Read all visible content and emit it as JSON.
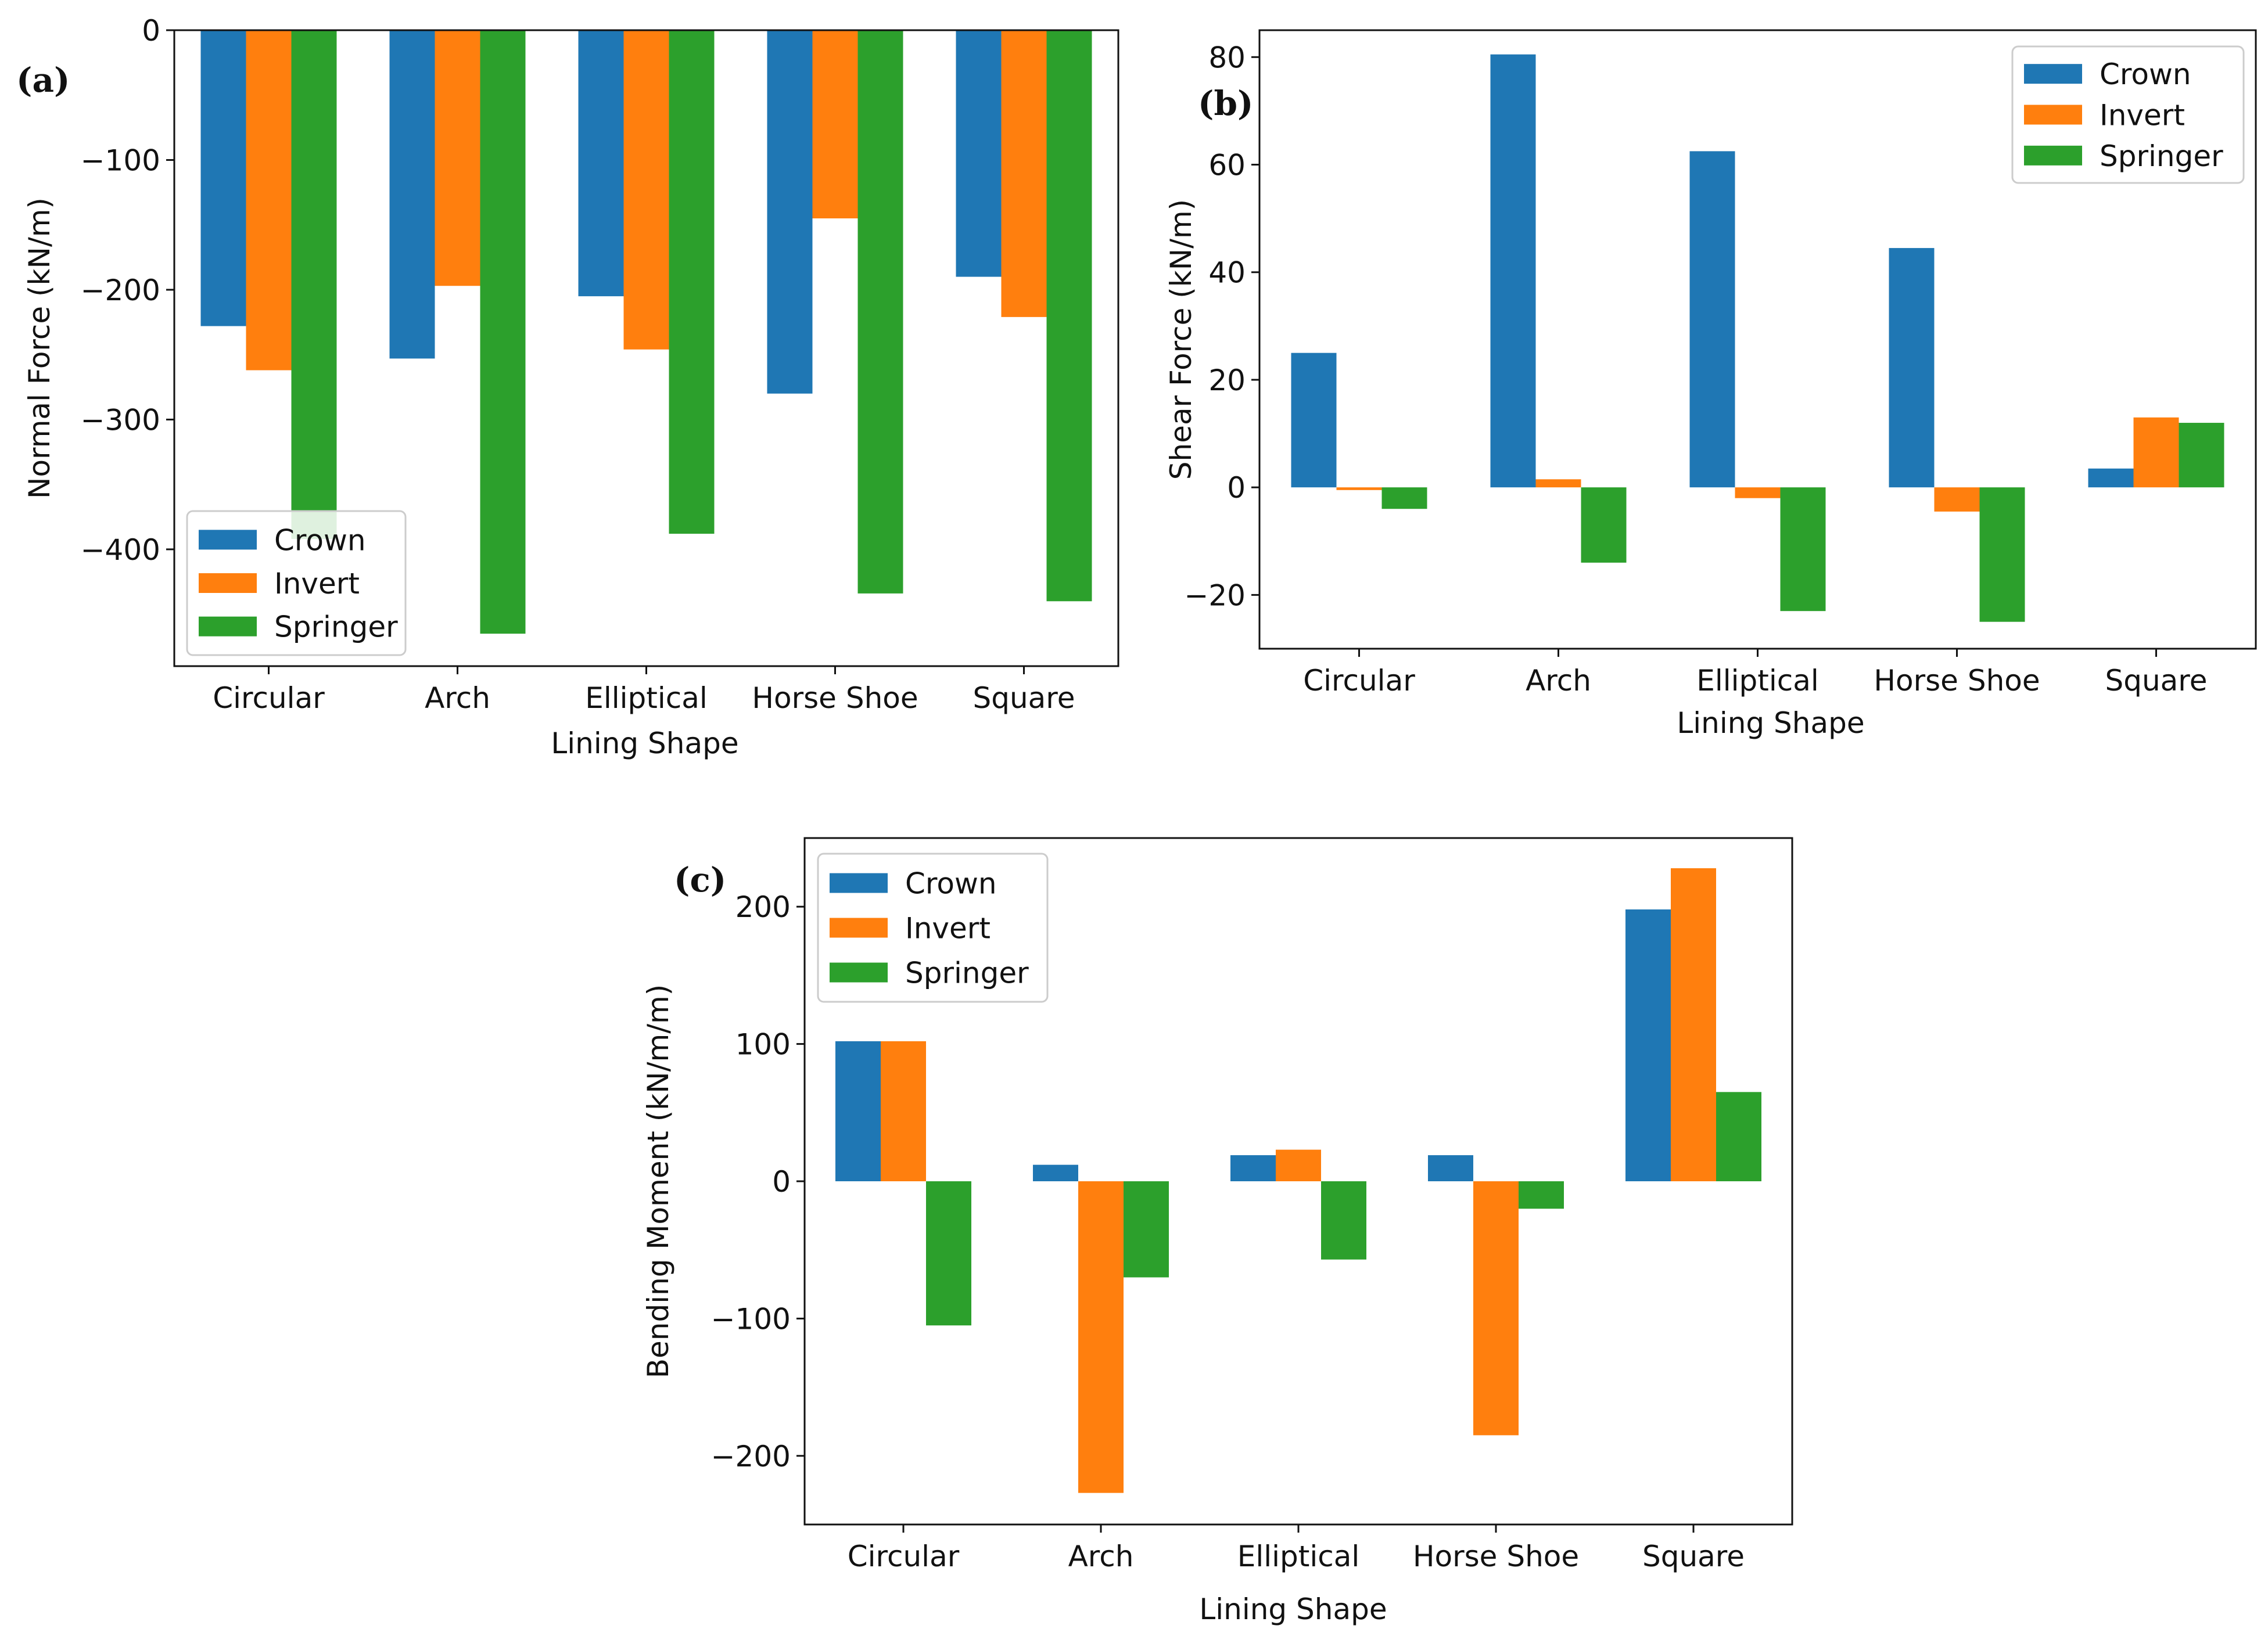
{
  "chart_data": [
    {
      "type": "bar",
      "panel_label": "(a)",
      "title": "",
      "xlabel": "Lining Shape",
      "ylabel": "Normal Force (kN/m)",
      "categories": [
        "Circular",
        "Arch",
        "Elliptical",
        "Horse Shoe",
        "Square"
      ],
      "ylim": [
        -490,
        0
      ],
      "yticks": [
        0,
        -100,
        -200,
        -300,
        -400
      ],
      "ytick_labels": [
        "0",
        "−100",
        "−200",
        "−300",
        "−400"
      ],
      "legend_position": "lower-left",
      "series": [
        {
          "name": "Crown",
          "color": "#1f77b4",
          "values": [
            -228,
            -253,
            -205,
            -280,
            -190
          ]
        },
        {
          "name": "Invert",
          "color": "#ff7f0e",
          "values": [
            -262,
            -197,
            -246,
            -145,
            -221
          ]
        },
        {
          "name": "Springer",
          "color": "#2ca02c",
          "values": [
            -392,
            -465,
            -388,
            -434,
            -440
          ]
        }
      ]
    },
    {
      "type": "bar",
      "panel_label": "(b)",
      "title": "",
      "xlabel": "Lining Shape",
      "ylabel": "Shear Force (kN/m)",
      "categories": [
        "Circular",
        "Arch",
        "Elliptical",
        "Horse Shoe",
        "Square"
      ],
      "ylim": [
        -30,
        85
      ],
      "yticks": [
        80,
        60,
        40,
        20,
        0,
        -20
      ],
      "ytick_labels": [
        "80",
        "60",
        "40",
        "20",
        "0",
        "−20"
      ],
      "legend_position": "upper-right",
      "series": [
        {
          "name": "Crown",
          "color": "#1f77b4",
          "values": [
            25,
            80.5,
            62.5,
            44.5,
            3.5
          ]
        },
        {
          "name": "Invert",
          "color": "#ff7f0e",
          "values": [
            -0.5,
            1.5,
            -2,
            -4.5,
            13
          ]
        },
        {
          "name": "Springer",
          "color": "#2ca02c",
          "values": [
            -4,
            -14,
            -23,
            -25,
            12
          ]
        }
      ]
    },
    {
      "type": "bar",
      "panel_label": "(c)",
      "title": "",
      "xlabel": "Lining Shape",
      "ylabel": "Bending Moment (kN/m/m)",
      "categories": [
        "Circular",
        "Arch",
        "Elliptical",
        "Horse Shoe",
        "Square"
      ],
      "ylim": [
        -250,
        250
      ],
      "yticks": [
        200,
        100,
        0,
        -100,
        -200
      ],
      "ytick_labels": [
        "200",
        "100",
        "0",
        "−100",
        "−200"
      ],
      "legend_position": "upper-left",
      "series": [
        {
          "name": "Crown",
          "color": "#1f77b4",
          "values": [
            102,
            12,
            19,
            19,
            198
          ]
        },
        {
          "name": "Invert",
          "color": "#ff7f0e",
          "values": [
            102,
            -227,
            23,
            -185,
            228
          ]
        },
        {
          "name": "Springer",
          "color": "#2ca02c",
          "values": [
            -105,
            -70,
            -57,
            -20,
            65
          ]
        }
      ]
    }
  ]
}
